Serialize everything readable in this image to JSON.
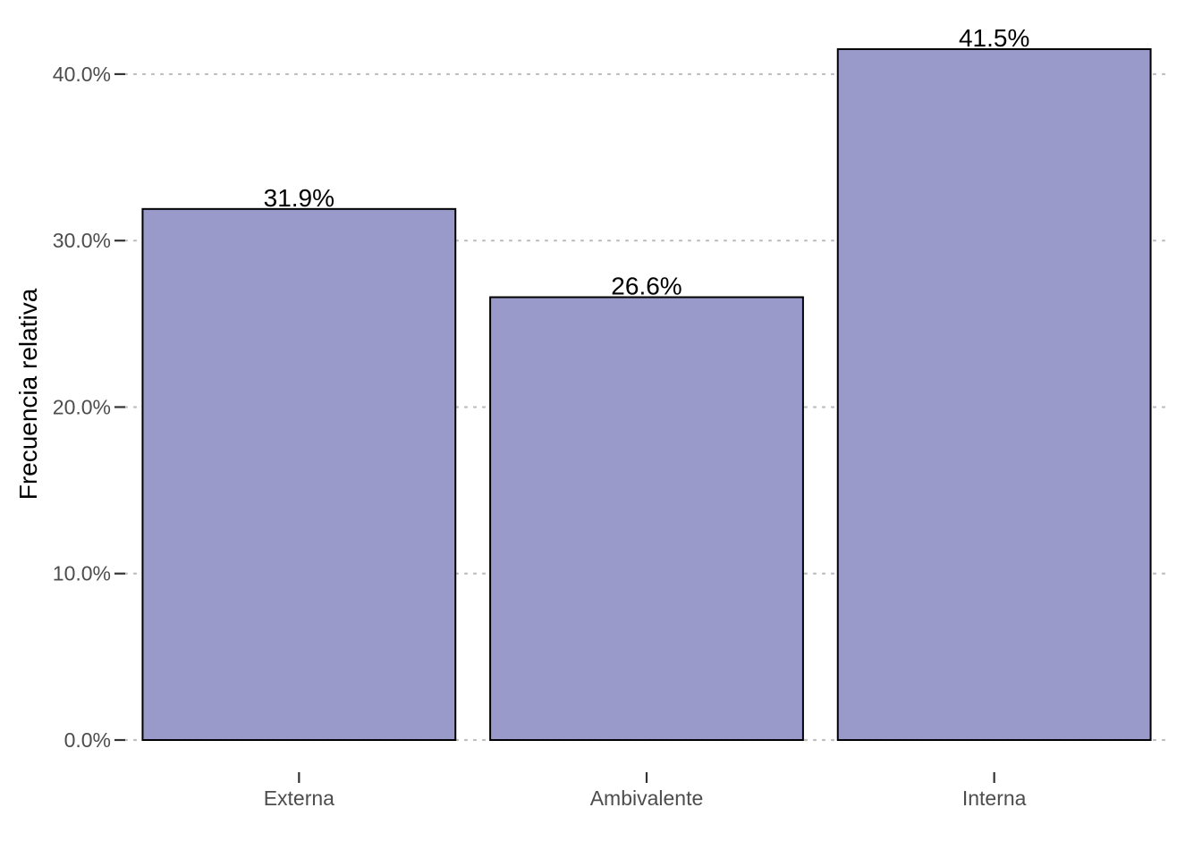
{
  "chart_data": {
    "type": "bar",
    "categories": [
      "Externa",
      "Ambivalente",
      "Interna"
    ],
    "values": [
      31.9,
      26.6,
      41.5
    ],
    "data_labels": [
      "31.9%",
      "26.6%",
      "41.5%"
    ],
    "title": "",
    "xlabel": "",
    "ylabel": "Frecuencia relativa",
    "ylim": [
      0,
      41.5
    ],
    "yticks": [
      0,
      10,
      20,
      30,
      40
    ],
    "ytick_labels": [
      "0.0%",
      "10.0%",
      "20.0%",
      "30.0%",
      "40.0%"
    ],
    "grid": "horizontal-dotted",
    "legend": "none",
    "colors": {
      "bar_fill": "#9999CA",
      "bar_stroke": "#000000",
      "grid": "#BEBEBE",
      "tick_text": "#4D4D4D"
    }
  }
}
